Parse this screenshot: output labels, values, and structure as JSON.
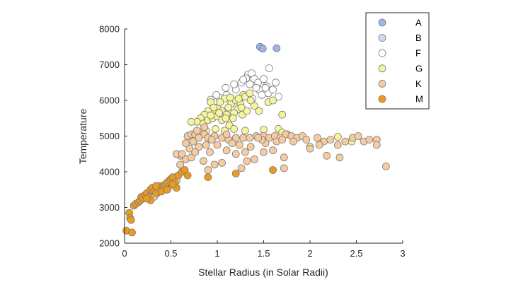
{
  "chart_data": {
    "type": "scatter",
    "xlabel": "Stellar Radius (in Solar Radii)",
    "ylabel": "Temperature",
    "xlim": [
      0,
      3
    ],
    "ylim": [
      2000,
      8000
    ],
    "xticks": [
      "0",
      "0.5",
      "1",
      "1.5",
      "2",
      "2.5",
      "3"
    ],
    "yticks": [
      "2000",
      "3000",
      "4000",
      "5000",
      "6000",
      "7000",
      "8000"
    ],
    "grid": false,
    "legend_position": "top-right",
    "series": [
      {
        "name": "A",
        "color": "#9fb4ec",
        "points": [
          [
            1.46,
            7500
          ],
          [
            1.49,
            7450
          ],
          [
            1.64,
            7460
          ]
        ]
      },
      {
        "name": "B",
        "color": "#ccdaf8",
        "points": []
      },
      {
        "name": "F",
        "color": "#ffffff",
        "points": [
          [
            1.33,
            6720
          ],
          [
            1.37,
            6760
          ],
          [
            1.4,
            6600
          ],
          [
            1.31,
            6620
          ],
          [
            1.56,
            6900
          ],
          [
            1.63,
            6500
          ],
          [
            1.53,
            6400
          ],
          [
            1.45,
            6300
          ],
          [
            1.35,
            6450
          ],
          [
            1.26,
            6500
          ],
          [
            1.2,
            6300
          ],
          [
            1.1,
            6150
          ],
          [
            1.02,
            6080
          ],
          [
            0.93,
            6020
          ],
          [
            1.48,
            6150
          ],
          [
            1.55,
            6200
          ],
          [
            1.66,
            6100
          ],
          [
            1.38,
            6050
          ],
          [
            1.27,
            6100
          ],
          [
            1.44,
            6500
          ],
          [
            1.5,
            6600
          ],
          [
            1.18,
            6450
          ],
          [
            1.09,
            6350
          ],
          [
            0.99,
            6150
          ],
          [
            1.52,
            6350
          ],
          [
            1.6,
            6300
          ],
          [
            1.28,
            6580
          ],
          [
            1.42,
            6350
          ]
        ]
      },
      {
        "name": "G",
        "color": "#f5f59d",
        "points": [
          [
            0.93,
            5950
          ],
          [
            1.0,
            5800
          ],
          [
            1.05,
            5700
          ],
          [
            0.97,
            5650
          ],
          [
            1.1,
            5600
          ],
          [
            1.15,
            5900
          ],
          [
            1.2,
            6000
          ],
          [
            1.25,
            5900
          ],
          [
            1.28,
            6150
          ],
          [
            1.3,
            6100
          ],
          [
            1.35,
            6200
          ],
          [
            1.22,
            5750
          ],
          [
            1.18,
            5650
          ],
          [
            1.12,
            5800
          ],
          [
            1.08,
            6050
          ],
          [
            1.03,
            5950
          ],
          [
            0.96,
            5800
          ],
          [
            0.9,
            5700
          ],
          [
            0.86,
            5600
          ],
          [
            0.82,
            5500
          ],
          [
            0.78,
            5400
          ],
          [
            0.72,
            5400
          ],
          [
            0.85,
            5350
          ],
          [
            0.9,
            5450
          ],
          [
            0.95,
            5500
          ],
          [
            1.0,
            5550
          ],
          [
            1.05,
            5450
          ],
          [
            1.13,
            5300
          ],
          [
            1.17,
            5500
          ],
          [
            1.27,
            5600
          ],
          [
            1.32,
            5700
          ],
          [
            1.4,
            5850
          ],
          [
            1.45,
            5700
          ],
          [
            1.55,
            5950
          ],
          [
            1.6,
            6000
          ],
          [
            1.7,
            5600
          ],
          [
            0.88,
            5150
          ],
          [
            0.98,
            5200
          ],
          [
            1.08,
            5150
          ],
          [
            1.18,
            5200
          ],
          [
            1.3,
            5150
          ],
          [
            1.5,
            5180
          ],
          [
            1.66,
            5200
          ],
          [
            1.7,
            5100
          ],
          [
            1.75,
            5050
          ],
          [
            2.0,
            4700
          ],
          [
            2.3,
            4980
          ],
          [
            2.45,
            4850
          ],
          [
            1.23,
            6050
          ],
          [
            1.36,
            6000
          ],
          [
            0.93,
            5580
          ],
          [
            1.02,
            5650
          ],
          [
            1.14,
            6080
          ],
          [
            1.26,
            5800
          ],
          [
            1.09,
            5500
          ]
        ]
      },
      {
        "name": "K",
        "color": "#f7cba2",
        "points": [
          [
            0.68,
            5000
          ],
          [
            0.72,
            5050
          ],
          [
            0.76,
            5050
          ],
          [
            0.82,
            5100
          ],
          [
            0.86,
            5050
          ],
          [
            0.9,
            4950
          ],
          [
            0.97,
            5000
          ],
          [
            1.05,
            4950
          ],
          [
            1.12,
            4900
          ],
          [
            1.2,
            4950
          ],
          [
            1.28,
            4950
          ],
          [
            1.35,
            4950
          ],
          [
            1.42,
            5000
          ],
          [
            1.5,
            5000
          ],
          [
            1.56,
            4950
          ],
          [
            1.62,
            5000
          ],
          [
            1.68,
            4950
          ],
          [
            1.74,
            5050
          ],
          [
            1.8,
            5000
          ],
          [
            1.86,
            4950
          ],
          [
            1.92,
            5000
          ],
          [
            1.96,
            4900
          ],
          [
            2.08,
            4950
          ],
          [
            2.15,
            4850
          ],
          [
            2.22,
            4900
          ],
          [
            2.3,
            4750
          ],
          [
            2.38,
            4850
          ],
          [
            2.46,
            4950
          ],
          [
            2.52,
            5000
          ],
          [
            2.58,
            4850
          ],
          [
            2.64,
            4900
          ],
          [
            2.72,
            4900
          ],
          [
            2.72,
            4750
          ],
          [
            2.82,
            4150
          ],
          [
            2.18,
            4450
          ],
          [
            2.32,
            4400
          ],
          [
            2.1,
            4750
          ],
          [
            1.72,
            4400
          ],
          [
            1.72,
            4100
          ],
          [
            1.6,
            4600
          ],
          [
            1.5,
            4550
          ],
          [
            1.4,
            4350
          ],
          [
            1.32,
            4300
          ],
          [
            1.2,
            4500
          ],
          [
            1.1,
            4600
          ],
          [
            1.05,
            4250
          ],
          [
            0.97,
            4200
          ],
          [
            0.9,
            4050
          ],
          [
            0.85,
            4300
          ],
          [
            0.6,
            4450
          ],
          [
            0.56,
            4500
          ],
          [
            0.66,
            4350
          ],
          [
            0.72,
            4400
          ],
          [
            0.8,
            4700
          ],
          [
            0.76,
            4550
          ],
          [
            0.7,
            4650
          ],
          [
            0.66,
            4800
          ],
          [
            0.62,
            4500
          ],
          [
            0.6,
            4200
          ],
          [
            0.62,
            4000
          ],
          [
            0.58,
            3900
          ],
          [
            0.56,
            3750
          ],
          [
            0.54,
            3650
          ],
          [
            0.5,
            3700
          ],
          [
            0.48,
            3600
          ],
          [
            0.45,
            3550
          ],
          [
            0.42,
            3500
          ],
          [
            0.38,
            3450
          ],
          [
            0.35,
            3400
          ],
          [
            0.32,
            3300
          ],
          [
            0.78,
            5150
          ],
          [
            0.86,
            5250
          ],
          [
            0.94,
            4900
          ],
          [
            1.0,
            4750
          ],
          [
            1.16,
            4800
          ],
          [
            1.24,
            4750
          ],
          [
            1.36,
            4700
          ],
          [
            1.52,
            4800
          ],
          [
            1.64,
            4850
          ],
          [
            0.8,
            4950
          ],
          [
            1.1,
            5050
          ],
          [
            0.92,
            4550
          ],
          [
            1.3,
            4550
          ],
          [
            1.48,
            4900
          ],
          [
            1.82,
            4850
          ],
          [
            2.0,
            4650
          ],
          [
            1.26,
            4100
          ],
          [
            1.7,
            4900
          ],
          [
            0.74,
            4850
          ],
          [
            0.88,
            4750
          ],
          [
            1.44,
            4950
          ]
        ]
      },
      {
        "name": "M",
        "color": "#ee9a1e",
        "points": [
          [
            0.02,
            2350
          ],
          [
            0.05,
            2850
          ],
          [
            0.06,
            2700
          ],
          [
            0.07,
            2650
          ],
          [
            0.08,
            2300
          ],
          [
            0.1,
            3050
          ],
          [
            0.12,
            3100
          ],
          [
            0.15,
            3150
          ],
          [
            0.17,
            3200
          ],
          [
            0.18,
            3300
          ],
          [
            0.2,
            3250
          ],
          [
            0.22,
            3350
          ],
          [
            0.24,
            3400
          ],
          [
            0.26,
            3300
          ],
          [
            0.28,
            3500
          ],
          [
            0.3,
            3550
          ],
          [
            0.32,
            3450
          ],
          [
            0.34,
            3400
          ],
          [
            0.36,
            3550
          ],
          [
            0.38,
            3600
          ],
          [
            0.4,
            3500
          ],
          [
            0.42,
            3600
          ],
          [
            0.44,
            3650
          ],
          [
            0.46,
            3700
          ],
          [
            0.48,
            3750
          ],
          [
            0.5,
            3800
          ],
          [
            0.52,
            3850
          ],
          [
            0.54,
            3700
          ],
          [
            0.56,
            3550
          ],
          [
            0.58,
            3900
          ],
          [
            0.62,
            4000
          ],
          [
            0.65,
            4050
          ],
          [
            0.68,
            3900
          ],
          [
            0.28,
            3200
          ],
          [
            0.34,
            3600
          ],
          [
            0.9,
            3850
          ],
          [
            1.2,
            3950
          ],
          [
            1.6,
            4050
          ],
          [
            0.4,
            3450
          ],
          [
            0.46,
            3500
          ],
          [
            0.52,
            3650
          ],
          [
            0.24,
            3250
          ]
        ]
      }
    ]
  }
}
